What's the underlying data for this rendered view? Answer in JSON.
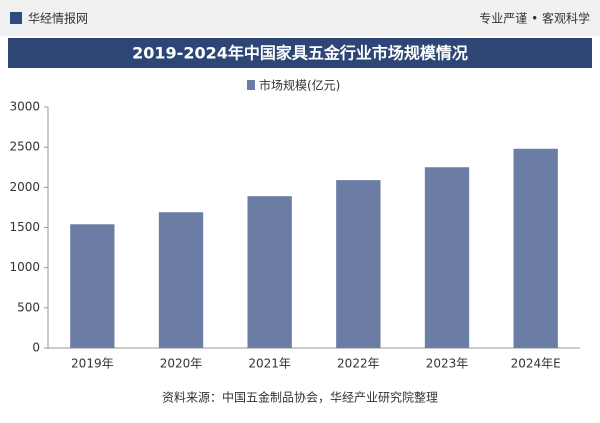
{
  "header": {
    "brand": "华经情报网",
    "slogan": "专业严谨 • 客观科学"
  },
  "chart_data": {
    "type": "bar",
    "title": "2019-2024年中国家具五金行业市场规模情况",
    "categories": [
      "2019年",
      "2020年",
      "2021年",
      "2022年",
      "2023年",
      "2024年E"
    ],
    "series": [
      {
        "name": "市场规模(亿元)",
        "color": "#6b7ca5",
        "values": [
          1540,
          1690,
          1890,
          2090,
          2250,
          2480
        ]
      }
    ],
    "ylim": [
      0,
      3000
    ],
    "yticks": [
      0,
      500,
      1000,
      1500,
      2000,
      2500,
      3000
    ],
    "grid": false
  },
  "source": "资料来源：中国五金制品协会，华经产业研究院整理"
}
